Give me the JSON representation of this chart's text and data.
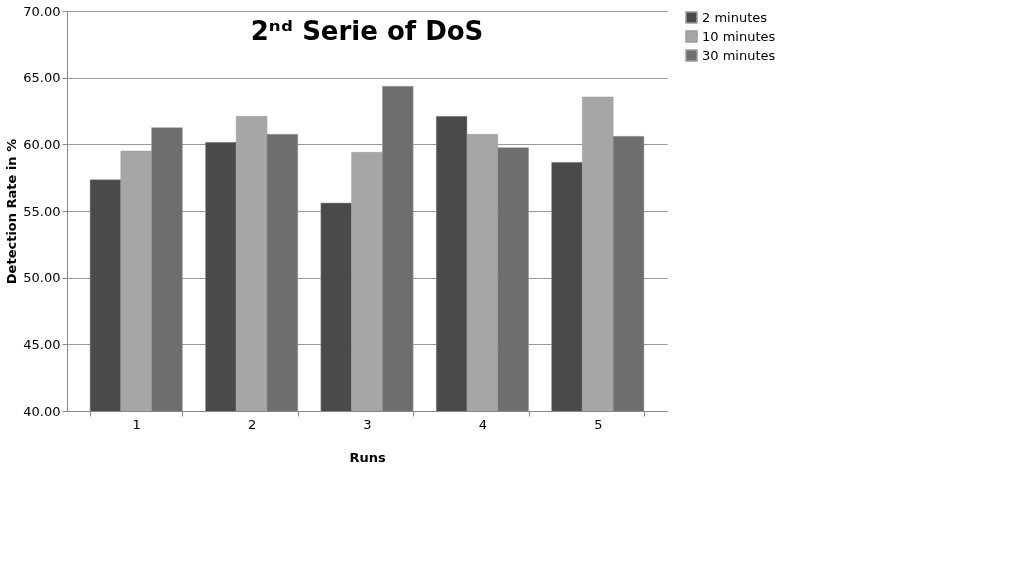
{
  "chart_data": {
    "type": "bar",
    "title": "2ⁿᵈ Serie of DoS",
    "xlabel": "Runs",
    "ylabel": "Detection Rate in %",
    "categories": [
      "1",
      "2",
      "3",
      "4",
      "5"
    ],
    "series": [
      {
        "name": "2 minutes",
        "color": "#4a4a4a",
        "values": [
          57.35,
          60.15,
          55.6,
          62.1,
          58.65
        ]
      },
      {
        "name": "10 minutes",
        "color": "#a6a6a6",
        "values": [
          59.5,
          62.1,
          59.4,
          60.75,
          63.55
        ]
      },
      {
        "name": "30 minutes",
        "color": "#6e6e6e",
        "values": [
          61.25,
          60.75,
          64.35,
          59.75,
          60.6
        ]
      }
    ],
    "ylim": [
      40,
      70
    ],
    "yticks": [
      {
        "value": 40,
        "label": "40.00"
      },
      {
        "value": 45,
        "label": "45.00"
      },
      {
        "value": 50,
        "label": "50.00"
      },
      {
        "value": 55,
        "label": "55.00"
      },
      {
        "value": 60,
        "label": "60.00"
      },
      {
        "value": 65,
        "label": "65.00"
      },
      {
        "value": 70,
        "label": "70.00"
      }
    ],
    "grid": "y",
    "legend": "right"
  }
}
